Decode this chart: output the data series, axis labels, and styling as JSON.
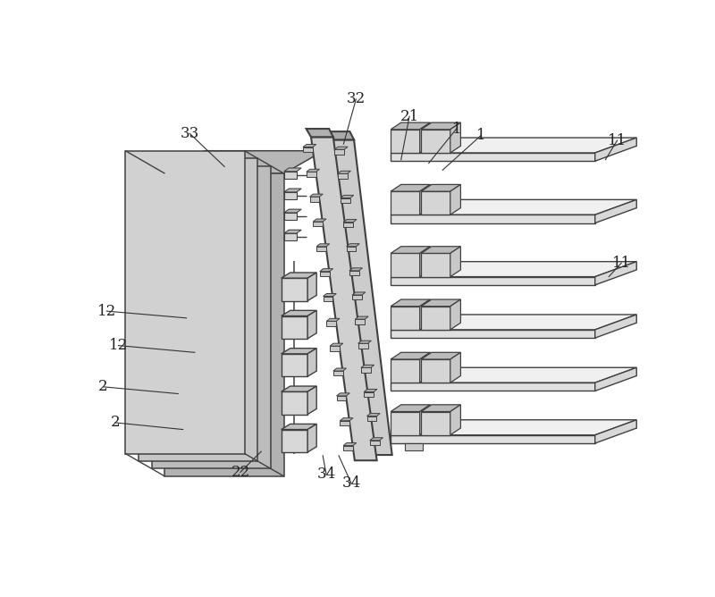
{
  "bg_color": "#ffffff",
  "lc": "#404040",
  "lw": 1.0,
  "font_size": 12,
  "annotations": [
    [
      "1",
      490,
      133,
      530,
      83
    ],
    [
      "1",
      510,
      143,
      565,
      93
    ],
    [
      "11",
      745,
      128,
      762,
      100
    ],
    [
      "11",
      750,
      298,
      768,
      278
    ],
    [
      "12",
      140,
      358,
      25,
      348
    ],
    [
      "12",
      152,
      408,
      42,
      398
    ],
    [
      "2",
      128,
      468,
      20,
      458
    ],
    [
      "2",
      135,
      520,
      37,
      510
    ],
    [
      "21",
      450,
      128,
      462,
      65
    ],
    [
      "22",
      248,
      552,
      218,
      582
    ],
    [
      "32",
      367,
      105,
      385,
      40
    ],
    [
      "33",
      195,
      138,
      145,
      90
    ],
    [
      "34",
      337,
      558,
      342,
      585
    ],
    [
      "34",
      360,
      558,
      378,
      598
    ]
  ]
}
